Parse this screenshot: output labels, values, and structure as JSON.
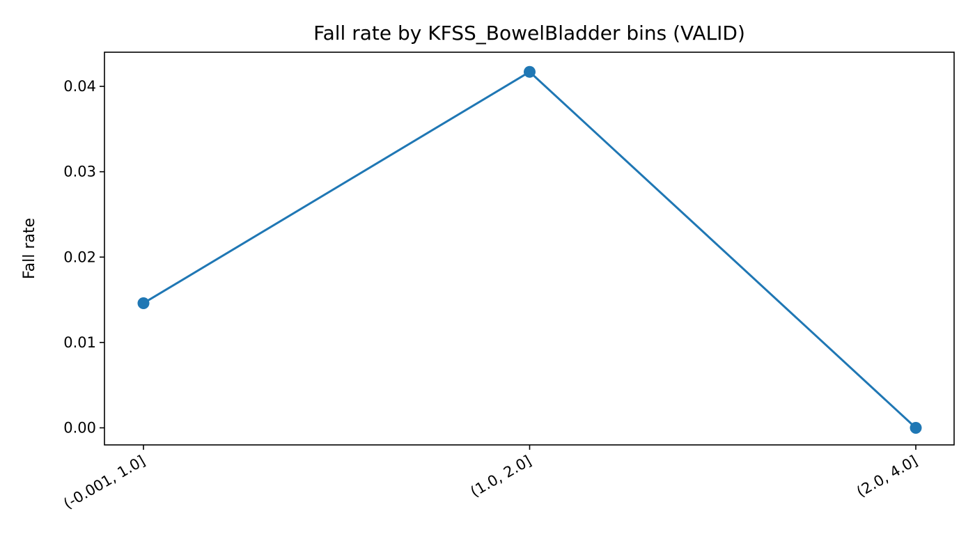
{
  "chart_data": {
    "type": "line",
    "title": "Fall rate by KFSS_BowelBladder bins (VALID)",
    "xlabel": "",
    "ylabel": "Fall rate",
    "categories": [
      "(-0.001, 1.0]",
      "(1.0, 2.0]",
      "(2.0, 4.0]"
    ],
    "series": [
      {
        "values": [
          0.0146,
          0.0417,
          0.0
        ]
      }
    ],
    "ylim": [
      -0.002,
      0.044
    ],
    "yticks": [
      0.0,
      0.01,
      0.02,
      0.03,
      0.04
    ],
    "ytick_labels": [
      "0.00",
      "0.01",
      "0.02",
      "0.03",
      "0.04"
    ],
    "grid": false,
    "legend": "none",
    "colors": {
      "line": "#1f77b4",
      "axes": "#000000",
      "background": "#ffffff"
    }
  }
}
